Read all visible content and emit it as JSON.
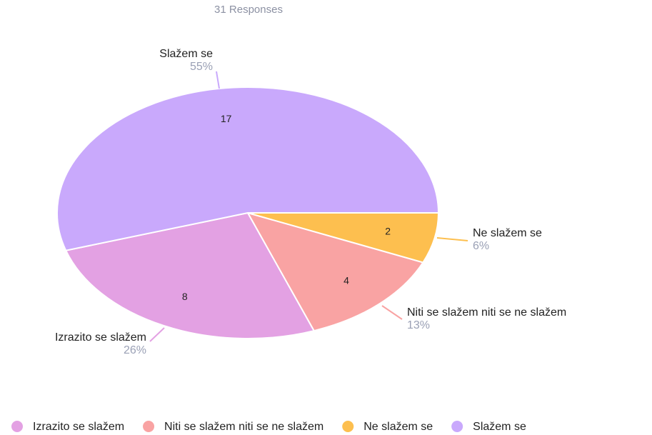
{
  "chart_data": {
    "type": "pie",
    "subtitle": "31 Responses",
    "categories": [
      "Izrazito se slažem",
      "Niti se slažem niti se ne slažem",
      "Ne slažem se",
      "Slažem se"
    ],
    "values": [
      8,
      4,
      2,
      17
    ],
    "percent_labels": [
      "26%",
      "13%",
      "6%",
      "55%"
    ],
    "colors": [
      "#e3a1e3",
      "#f9a3a3",
      "#fdbf4f",
      "#c9a9fc"
    ],
    "legend": true
  }
}
